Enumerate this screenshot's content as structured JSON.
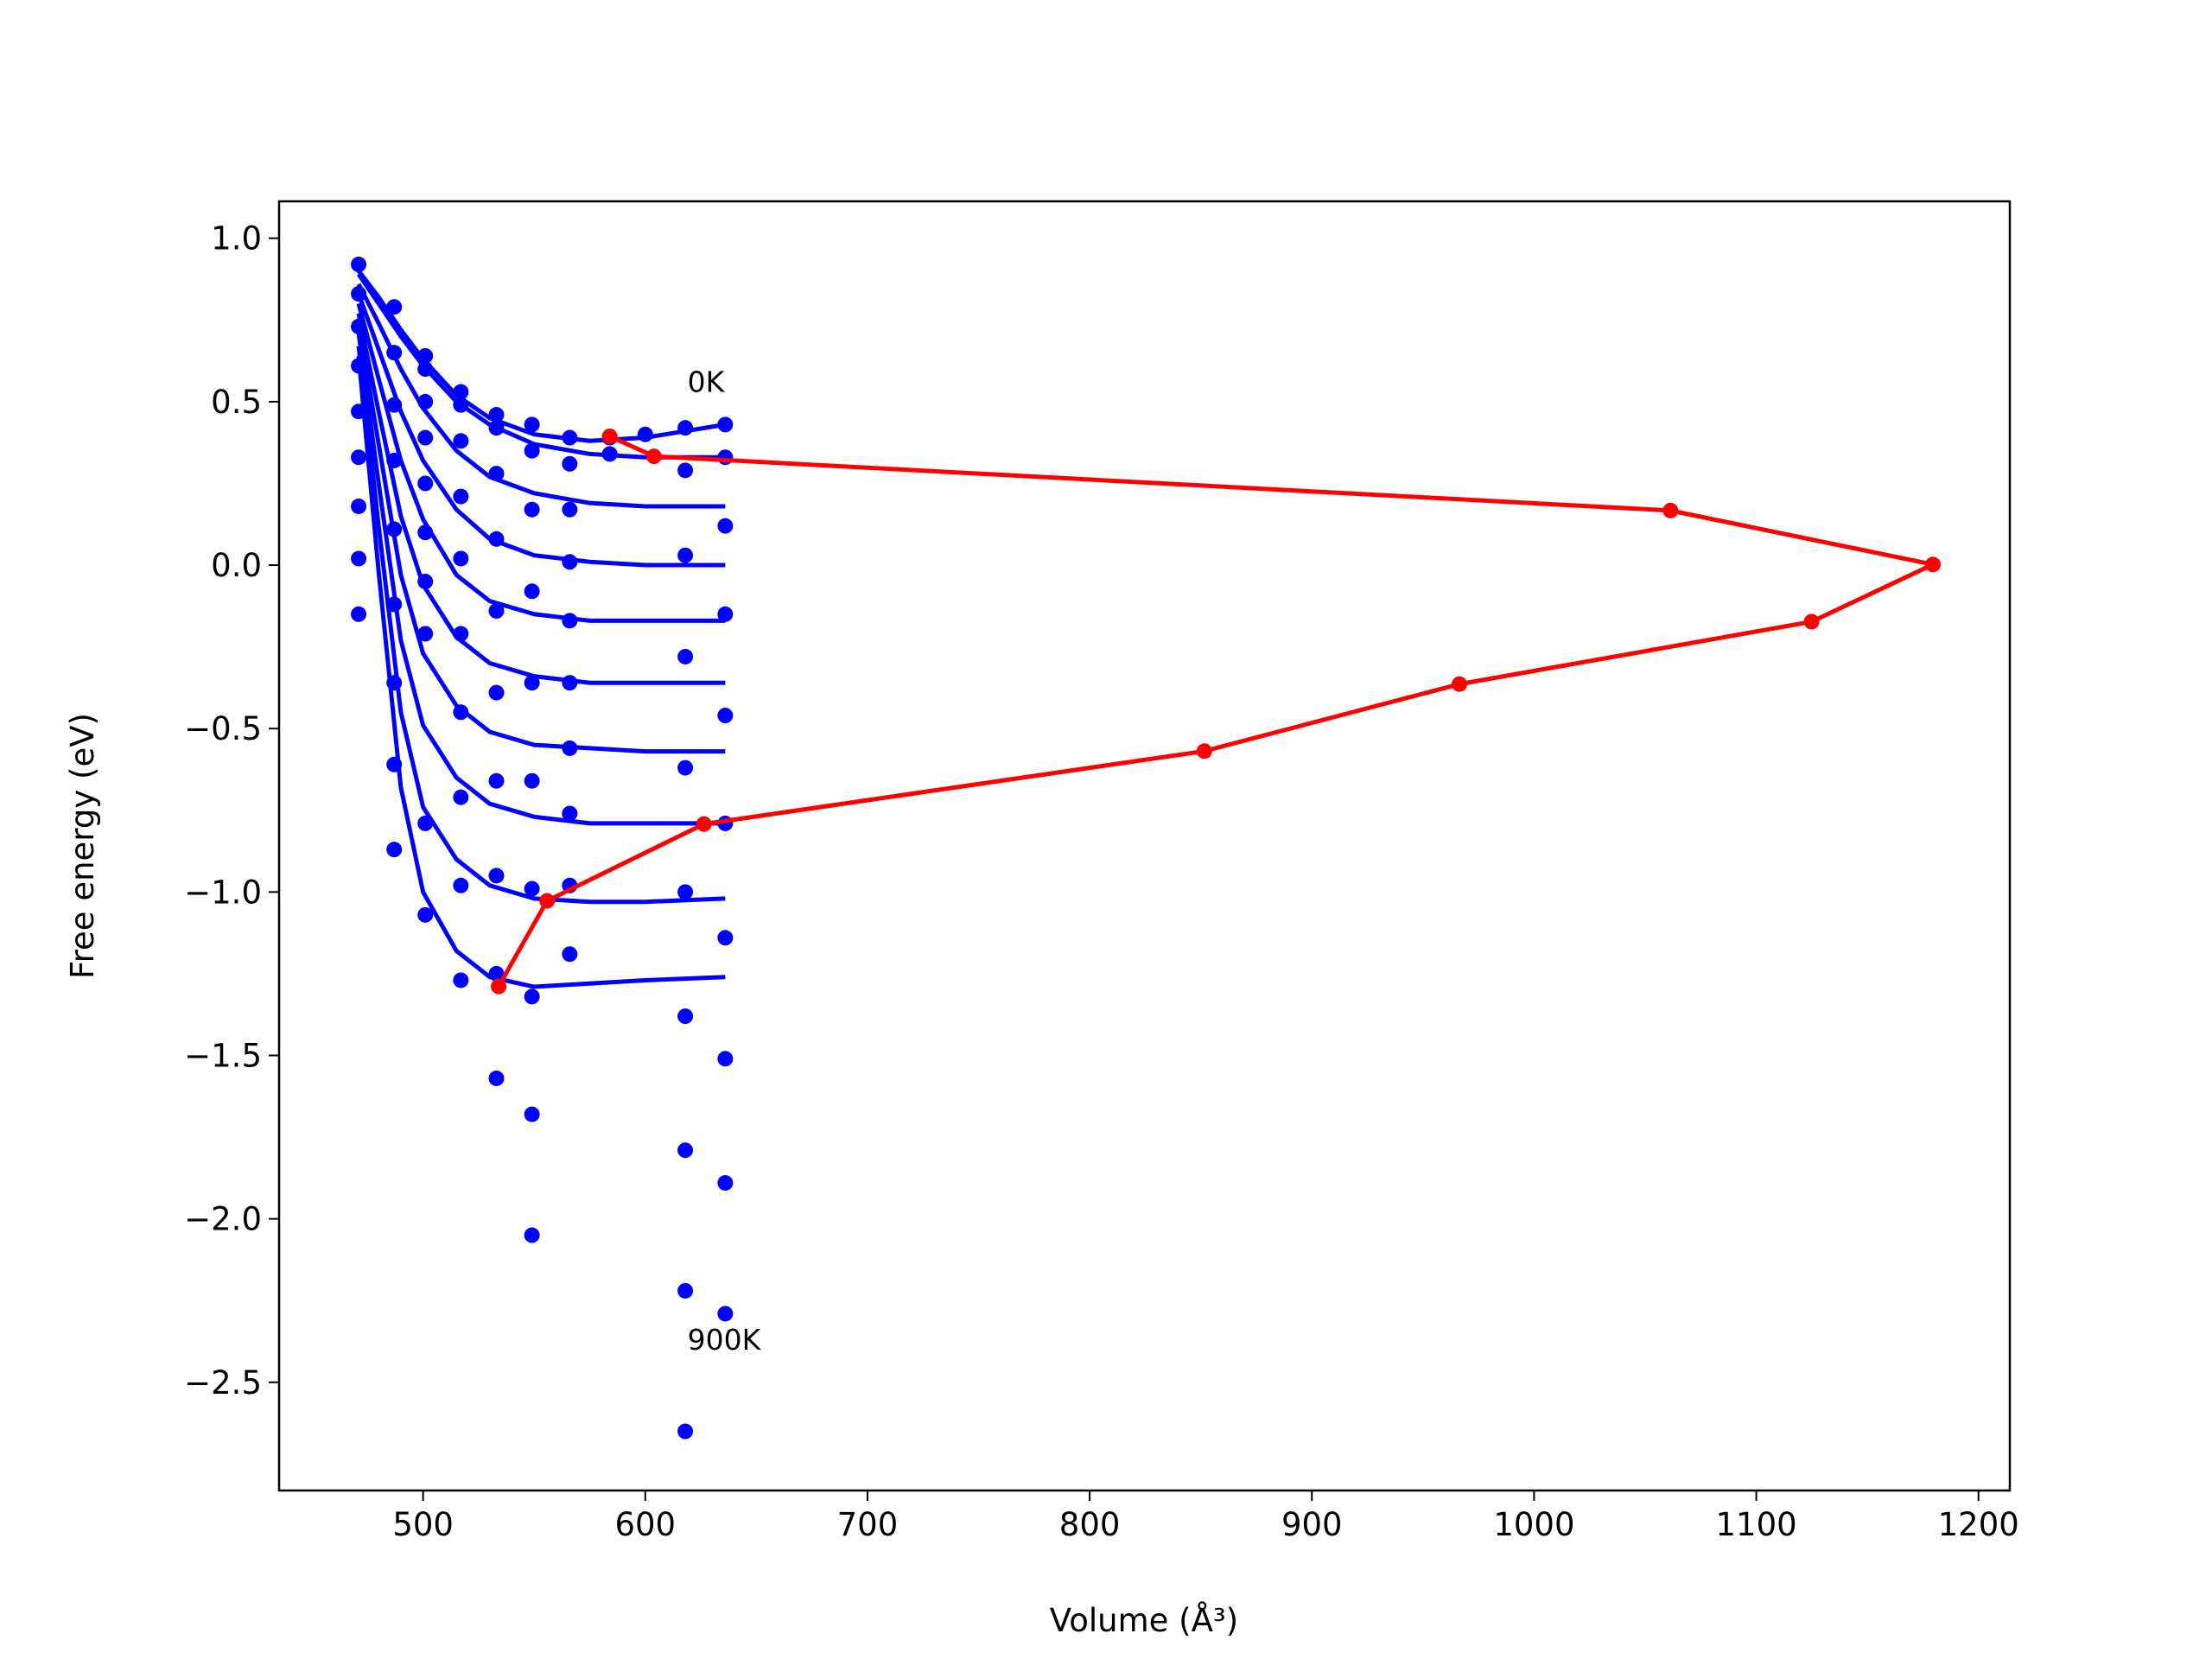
{
  "chart_data": {
    "type": "scatter",
    "xlabel": "Volume (Å³)",
    "ylabel": "Free energy (eV)",
    "xlim": [
      435.2,
      1214.1
    ],
    "ylim": [
      -2.831,
      1.113
    ],
    "xticks": [
      500,
      600,
      700,
      800,
      900,
      1000,
      1100,
      1200
    ],
    "yticks": [
      {
        "value": -2.5,
        "label": "−2.5"
      },
      {
        "value": -2.0,
        "label": "−2.0"
      },
      {
        "value": -1.5,
        "label": "−1.5"
      },
      {
        "value": -1.0,
        "label": "−1.0"
      },
      {
        "value": -0.5,
        "label": "−0.5"
      },
      {
        "value": 0.0,
        "label": "0.0"
      },
      {
        "value": 0.5,
        "label": "0.5"
      },
      {
        "value": 1.0,
        "label": "1.0"
      }
    ],
    "points": {
      "color": "#0000ff",
      "x": [
        471,
        471,
        471,
        471,
        471,
        471,
        471,
        471,
        471,
        487,
        487,
        487,
        487,
        487,
        487,
        487,
        487,
        487,
        501,
        501,
        501,
        501,
        501,
        501,
        501,
        501,
        501,
        501,
        517,
        517,
        517,
        517,
        517,
        517,
        517,
        517,
        517,
        517,
        533,
        533,
        533,
        533,
        533,
        533,
        533,
        533,
        533,
        533,
        549,
        549,
        549,
        549,
        549,
        549,
        549,
        549,
        549,
        549,
        566,
        566,
        566,
        566,
        566,
        566,
        566,
        566,
        566,
        566,
        584,
        584,
        600,
        618,
        618,
        618,
        618,
        618,
        618,
        618,
        618,
        618,
        618,
        636,
        636,
        636,
        636,
        636,
        636,
        636,
        636,
        636,
        636
      ],
      "y": [
        0.92,
        0.83,
        0.73,
        0.61,
        0.47,
        0.33,
        0.18,
        0.02,
        -0.15,
        0.79,
        0.65,
        0.49,
        0.32,
        0.11,
        -0.12,
        -0.36,
        -0.61,
        -0.87,
        0.64,
        0.6,
        0.5,
        0.39,
        0.25,
        0.1,
        -0.05,
        -0.21,
        -0.79,
        -1.07,
        0.53,
        0.49,
        0.38,
        0.21,
        0.02,
        -0.21,
        -0.45,
        -0.71,
        -0.98,
        -1.27,
        0.46,
        0.42,
        0.28,
        0.08,
        -0.14,
        -0.39,
        -0.66,
        -0.95,
        -1.25,
        -1.57,
        0.43,
        0.35,
        0.17,
        -0.08,
        -0.36,
        -0.66,
        -0.99,
        -1.32,
        -1.68,
        -2.05,
        0.39,
        0.31,
        0.17,
        0.01,
        -0.17,
        -0.36,
        -0.56,
        -0.76,
        -0.98,
        -1.19,
        0.39,
        0.34,
        0.4,
        0.42,
        0.29,
        0.03,
        -0.28,
        -0.62,
        -1.0,
        -1.38,
        -1.79,
        -2.22,
        -2.65,
        0.43,
        0.33,
        0.12,
        -0.15,
        -0.46,
        -0.79,
        -1.14,
        -1.51,
        -1.89,
        -2.29
      ]
    },
    "curve_x": [
      471,
      480,
      490,
      500,
      515,
      530,
      550,
      575,
      600,
      636
    ],
    "curve_color": "#0000ff",
    "curves": [
      [
        0.9,
        0.82,
        0.72,
        0.63,
        0.52,
        0.45,
        0.4,
        0.38,
        0.39,
        0.43
      ],
      [
        0.89,
        0.8,
        0.7,
        0.61,
        0.5,
        0.43,
        0.37,
        0.34,
        0.33,
        0.33
      ],
      [
        0.86,
        0.74,
        0.6,
        0.48,
        0.35,
        0.27,
        0.22,
        0.19,
        0.18,
        0.18
      ],
      [
        0.83,
        0.66,
        0.47,
        0.32,
        0.17,
        0.08,
        0.03,
        0.01,
        0.0,
        0.0
      ],
      [
        0.8,
        0.57,
        0.32,
        0.14,
        -0.03,
        -0.11,
        -0.15,
        -0.17,
        -0.17,
        -0.17
      ],
      [
        0.77,
        0.47,
        0.15,
        -0.06,
        -0.22,
        -0.3,
        -0.34,
        -0.36,
        -0.36,
        -0.36
      ],
      [
        0.74,
        0.37,
        -0.03,
        -0.27,
        -0.43,
        -0.51,
        -0.55,
        -0.56,
        -0.57,
        -0.57
      ],
      [
        0.71,
        0.25,
        -0.23,
        -0.49,
        -0.65,
        -0.73,
        -0.77,
        -0.79,
        -0.79,
        -0.79
      ],
      [
        0.67,
        0.12,
        -0.45,
        -0.74,
        -0.9,
        -0.98,
        -1.02,
        -1.03,
        -1.03,
        -1.02
      ],
      [
        0.64,
        -0.02,
        -0.68,
        -1.0,
        -1.18,
        -1.26,
        -1.29,
        -1.28,
        -1.27,
        -1.26
      ]
    ],
    "line": {
      "color": "#ff0000",
      "x": [
        584.0,
        603.9,
        1061.4,
        1179.5,
        1124.9,
        966.4,
        851.6,
        626.4,
        555.8,
        534.0
      ],
      "values": [
        0.394,
        0.333,
        0.167,
        0.002,
        -0.173,
        -0.364,
        -0.569,
        -0.792,
        -1.027,
        -1.289
      ]
    },
    "annotations": [
      {
        "text": "0K",
        "x": 619,
        "y": 0.53
      },
      {
        "text": "900K",
        "x": 619,
        "y": -2.4
      }
    ]
  }
}
